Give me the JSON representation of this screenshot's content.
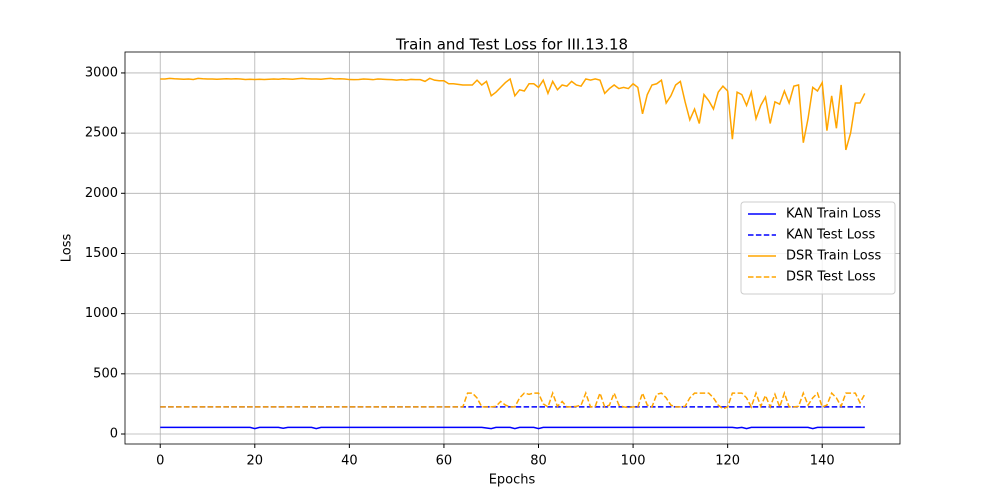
{
  "chart_data": {
    "type": "line",
    "title": "Train and Test Loss for III.13.18",
    "x_label": "Epochs",
    "y_label": "Loss",
    "xlim": [
      -7.45,
      156.45
    ],
    "ylim": [
      -83,
      3174
    ],
    "xticks": [
      0,
      20,
      40,
      60,
      80,
      100,
      120,
      140
    ],
    "yticks": [
      0,
      500,
      1000,
      1500,
      2000,
      2500,
      3000
    ],
    "grid": true,
    "legend": "center right",
    "x": [
      0,
      1,
      2,
      3,
      4,
      5,
      6,
      7,
      8,
      9,
      10,
      11,
      12,
      13,
      14,
      15,
      16,
      17,
      18,
      19,
      20,
      21,
      22,
      23,
      24,
      25,
      26,
      27,
      28,
      29,
      30,
      31,
      32,
      33,
      34,
      35,
      36,
      37,
      38,
      39,
      40,
      41,
      42,
      43,
      44,
      45,
      46,
      47,
      48,
      49,
      50,
      51,
      52,
      53,
      54,
      55,
      56,
      57,
      58,
      59,
      60,
      61,
      62,
      63,
      64,
      65,
      66,
      67,
      68,
      69,
      70,
      71,
      72,
      73,
      74,
      75,
      76,
      77,
      78,
      79,
      80,
      81,
      82,
      83,
      84,
      85,
      86,
      87,
      88,
      89,
      90,
      91,
      92,
      93,
      94,
      95,
      96,
      97,
      98,
      99,
      100,
      101,
      102,
      103,
      104,
      105,
      106,
      107,
      108,
      109,
      110,
      111,
      112,
      113,
      114,
      115,
      116,
      117,
      118,
      119,
      120,
      121,
      122,
      123,
      124,
      125,
      126,
      127,
      128,
      129,
      130,
      131,
      132,
      133,
      134,
      135,
      136,
      137,
      138,
      139,
      140,
      141,
      142,
      143,
      144,
      145,
      146,
      147,
      148,
      149
    ],
    "series": [
      {
        "name": "KAN Train Loss",
        "color": "#0000ff",
        "dashed": false,
        "values": [
          55,
          55,
          55,
          55,
          55,
          55,
          55,
          55,
          55,
          55,
          55,
          55,
          55,
          55,
          55,
          55,
          55,
          55,
          55,
          55,
          45,
          55,
          55,
          55,
          55,
          55,
          48,
          55,
          55,
          55,
          55,
          55,
          55,
          45,
          55,
          55,
          55,
          55,
          55,
          55,
          55,
          55,
          55,
          55,
          55,
          55,
          55,
          55,
          55,
          55,
          55,
          55,
          55,
          55,
          55,
          55,
          55,
          55,
          55,
          55,
          55,
          55,
          55,
          55,
          55,
          55,
          55,
          55,
          55,
          50,
          45,
          55,
          55,
          55,
          55,
          45,
          55,
          55,
          55,
          55,
          45,
          55,
          55,
          55,
          55,
          55,
          55,
          55,
          55,
          55,
          55,
          55,
          55,
          55,
          55,
          55,
          55,
          55,
          55,
          55,
          55,
          55,
          55,
          55,
          55,
          55,
          55,
          55,
          55,
          55,
          55,
          55,
          55,
          55,
          55,
          55,
          55,
          55,
          55,
          55,
          55,
          55,
          50,
          55,
          45,
          55,
          55,
          55,
          55,
          55,
          55,
          55,
          55,
          55,
          55,
          55,
          55,
          55,
          45,
          55,
          55,
          55,
          55,
          55,
          55,
          55,
          55,
          55,
          55,
          55
        ]
      },
      {
        "name": "KAN Test Loss",
        "color": "#0000ff",
        "dashed": true,
        "values": [
          225,
          225,
          225,
          225,
          225,
          225,
          225,
          225,
          225,
          225,
          225,
          225,
          225,
          225,
          225,
          225,
          225,
          225,
          225,
          225,
          225,
          225,
          225,
          225,
          225,
          225,
          225,
          225,
          225,
          225,
          225,
          225,
          225,
          225,
          225,
          225,
          225,
          225,
          225,
          225,
          225,
          225,
          225,
          225,
          225,
          225,
          225,
          225,
          225,
          225,
          225,
          225,
          225,
          225,
          225,
          225,
          225,
          225,
          225,
          225,
          225,
          225,
          225,
          225,
          225,
          225,
          225,
          225,
          225,
          225,
          225,
          225,
          225,
          225,
          225,
          225,
          225,
          225,
          225,
          225,
          225,
          225,
          225,
          225,
          225,
          225,
          225,
          225,
          225,
          225,
          225,
          225,
          225,
          225,
          225,
          225,
          225,
          225,
          225,
          225,
          225,
          225,
          225,
          225,
          225,
          225,
          225,
          225,
          225,
          225,
          225,
          225,
          225,
          225,
          225,
          225,
          225,
          225,
          225,
          225,
          225,
          225,
          225,
          225,
          225,
          225,
          225,
          225,
          225,
          225,
          225,
          225,
          225,
          225,
          225,
          225,
          225,
          225,
          225,
          225,
          225,
          225,
          225,
          225,
          225,
          225,
          225,
          225,
          225,
          225
        ]
      },
      {
        "name": "DSR Train Loss",
        "color": "#ffa500",
        "dashed": false,
        "values": [
          2950,
          2950,
          2955,
          2952,
          2950,
          2948,
          2950,
          2946,
          2955,
          2952,
          2950,
          2950,
          2948,
          2950,
          2952,
          2950,
          2952,
          2950,
          2946,
          2948,
          2945,
          2948,
          2946,
          2948,
          2950,
          2948,
          2952,
          2950,
          2948,
          2952,
          2955,
          2952,
          2950,
          2950,
          2948,
          2952,
          2955,
          2950,
          2952,
          2950,
          2945,
          2944,
          2946,
          2950,
          2948,
          2944,
          2950,
          2948,
          2946,
          2944,
          2940,
          2944,
          2940,
          2946,
          2944,
          2944,
          2930,
          2955,
          2940,
          2935,
          2935,
          2910,
          2910,
          2905,
          2900,
          2900,
          2900,
          2940,
          2900,
          2930,
          2810,
          2840,
          2880,
          2920,
          2950,
          2810,
          2860,
          2850,
          2910,
          2910,
          2880,
          2940,
          2830,
          2930,
          2860,
          2900,
          2890,
          2930,
          2900,
          2890,
          2950,
          2940,
          2950,
          2940,
          2830,
          2870,
          2900,
          2870,
          2880,
          2870,
          2910,
          2880,
          2660,
          2820,
          2900,
          2910,
          2940,
          2750,
          2810,
          2900,
          2930,
          2760,
          2610,
          2700,
          2580,
          2820,
          2770,
          2700,
          2840,
          2890,
          2850,
          2450,
          2840,
          2820,
          2730,
          2840,
          2620,
          2730,
          2800,
          2580,
          2760,
          2740,
          2850,
          2750,
          2890,
          2900,
          2420,
          2620,
          2880,
          2850,
          2920,
          2520,
          2810,
          2540,
          2900,
          2360,
          2500,
          2750,
          2750,
          2830
        ]
      },
      {
        "name": "DSR Test Loss",
        "color": "#ffa500",
        "dashed": true,
        "values": [
          225,
          225,
          225,
          225,
          225,
          225,
          225,
          225,
          225,
          225,
          225,
          225,
          225,
          225,
          225,
          225,
          225,
          225,
          225,
          225,
          225,
          225,
          225,
          225,
          225,
          225,
          225,
          225,
          225,
          225,
          225,
          225,
          225,
          225,
          225,
          225,
          225,
          225,
          225,
          225,
          225,
          225,
          225,
          225,
          225,
          225,
          225,
          225,
          225,
          225,
          225,
          225,
          225,
          225,
          225,
          225,
          225,
          225,
          225,
          225,
          225,
          225,
          225,
          225,
          225,
          340,
          340,
          300,
          225,
          225,
          225,
          230,
          270,
          240,
          225,
          225,
          300,
          340,
          330,
          340,
          340,
          250,
          225,
          340,
          230,
          270,
          225,
          225,
          230,
          240,
          340,
          225,
          230,
          340,
          225,
          240,
          340,
          240,
          225,
          220,
          225,
          225,
          340,
          240,
          225,
          330,
          340,
          300,
          240,
          225,
          225,
          230,
          300,
          340,
          340,
          340,
          340,
          300,
          240,
          210,
          225,
          340,
          340,
          340,
          300,
          225,
          340,
          230,
          320,
          225,
          330,
          225,
          340,
          225,
          225,
          230,
          340,
          240,
          300,
          340,
          225,
          240,
          340,
          300,
          230,
          340,
          340,
          340,
          260,
          330
        ]
      }
    ]
  }
}
